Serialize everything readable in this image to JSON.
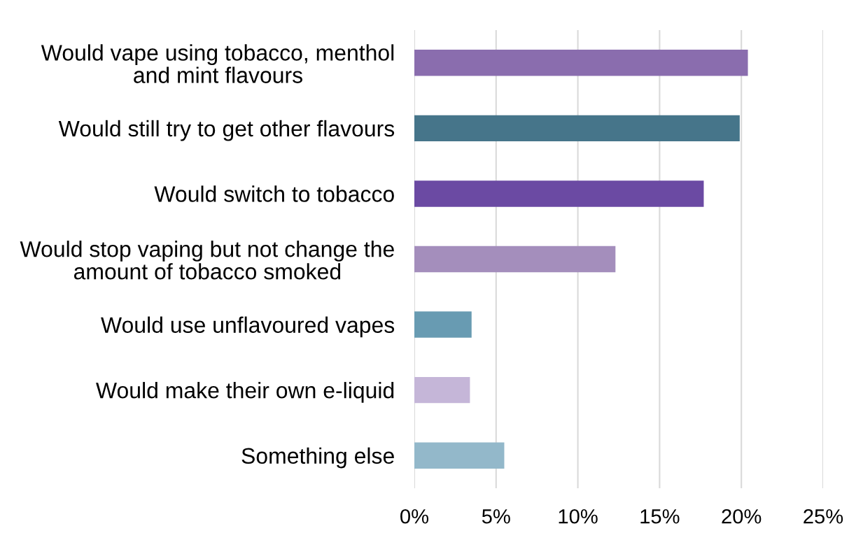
{
  "chart_data": {
    "type": "bar",
    "orientation": "horizontal",
    "categories": [
      "Would vape using tobacco, menthol\nand mint flavours",
      "Would still try to get other flavours",
      "Would switch to tobacco",
      "Would stop vaping but not change the\namount of tobacco smoked",
      "Would use unflavoured vapes",
      "Would make their own e-liquid",
      "Something else"
    ],
    "values": [
      20.4,
      19.9,
      17.7,
      12.3,
      3.5,
      3.4,
      5.5
    ],
    "colors": [
      "#8a6dae",
      "#46758a",
      "#6b4aa3",
      "#a48ebc",
      "#689bb2",
      "#c5b6d8",
      "#93b8ca"
    ],
    "xlim": [
      0,
      25
    ],
    "xticks": [
      {
        "value": 0,
        "label": "0%"
      },
      {
        "value": 5,
        "label": "5%"
      },
      {
        "value": 10,
        "label": "10%"
      },
      {
        "value": 15,
        "label": "15%"
      },
      {
        "value": 20,
        "label": "20%"
      },
      {
        "value": 25,
        "label": "25%"
      }
    ],
    "grid": "x"
  }
}
